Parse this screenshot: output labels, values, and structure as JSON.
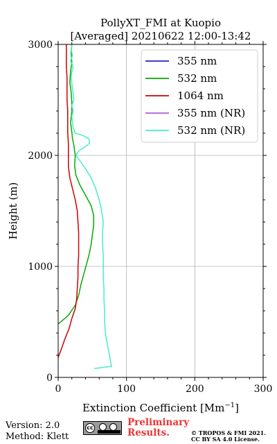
{
  "chart_data": {
    "type": "line",
    "title": "PollyXT_FMI at Kuopio",
    "subtitle": "[Averaged] 20210622 12:00-13:42",
    "xlabel": "Extinction Coefficient [Mm⁻¹]",
    "ylabel": "Height (m)",
    "xlim": [
      0,
      300
    ],
    "ylim": [
      0,
      3000
    ],
    "xticks": [
      "0",
      "100",
      "200",
      "300"
    ],
    "yticks": [
      "0",
      "1000",
      "2000",
      "3000"
    ],
    "grid": true,
    "legend_position": "top-right",
    "series": [
      {
        "name": "355 nm",
        "color": "#2222bb",
        "x": [],
        "y": []
      },
      {
        "name": "532 nm",
        "color": "#00aa00",
        "x": [
          0,
          15,
          25,
          30,
          33,
          37,
          41,
          45,
          48,
          50,
          52,
          52,
          48,
          40,
          32,
          26,
          24,
          25,
          23,
          21,
          20,
          18,
          20,
          20,
          19,
          17,
          18,
          20,
          19,
          20
        ],
        "y": [
          480,
          560,
          650,
          740,
          830,
          920,
          1010,
          1100,
          1190,
          1280,
          1370,
          1460,
          1550,
          1640,
          1730,
          1820,
          1910,
          2000,
          2090,
          2150,
          2210,
          2300,
          2390,
          2480,
          2570,
          2660,
          2750,
          2840,
          2930,
          3000
        ]
      },
      {
        "name": "1064 nm",
        "color": "#cc0000",
        "x": [
          0,
          5,
          10,
          16,
          20,
          25,
          27,
          28,
          29,
          29,
          30,
          30,
          30,
          29,
          28,
          25,
          21,
          17,
          15,
          15,
          15,
          14,
          14,
          14,
          13,
          13,
          13,
          12,
          12,
          12
        ],
        "y": [
          180,
          260,
          350,
          440,
          530,
          620,
          700,
          800,
          900,
          1000,
          1100,
          1200,
          1300,
          1400,
          1500,
          1600,
          1700,
          1800,
          1900,
          2000,
          2100,
          2200,
          2300,
          2400,
          2500,
          2600,
          2700,
          2800,
          2900,
          3000
        ]
      },
      {
        "name": "355 nm (NR)",
        "color": "#b35ade",
        "x": [],
        "y": []
      },
      {
        "name": "532 nm (NR)",
        "color": "#44eec8",
        "x": [
          53,
          78,
          77,
          75,
          72,
          69,
          68,
          68,
          67,
          67,
          66,
          66,
          66,
          65,
          65,
          66,
          65,
          64,
          63,
          60,
          55,
          48,
          40,
          32,
          26,
          30,
          40,
          46,
          45,
          36,
          25,
          22,
          21,
          20,
          22,
          20,
          23,
          22,
          21,
          20,
          19,
          20,
          22,
          18,
          21,
          19,
          20
        ],
        "y": [
          80,
          100,
          130,
          200,
          300,
          400,
          500,
          600,
          700,
          800,
          900,
          1000,
          1100,
          1200,
          1300,
          1400,
          1450,
          1480,
          1520,
          1600,
          1700,
          1800,
          1880,
          1950,
          2000,
          2040,
          2080,
          2110,
          2150,
          2180,
          2200,
          2250,
          2300,
          2350,
          2400,
          2450,
          2500,
          2550,
          2600,
          2650,
          2700,
          2750,
          2800,
          2850,
          2900,
          2950,
          3000
        ]
      }
    ]
  },
  "footer": {
    "version": "Version: 2.0",
    "method": "Method: Klett",
    "badge_label": "cc",
    "preliminary_line1": "Preliminary",
    "preliminary_line2": "Results.",
    "copyright_line1": "© TROPOS & FMI 2021.",
    "copyright_line2": "CC BY SA 4.0 License."
  }
}
